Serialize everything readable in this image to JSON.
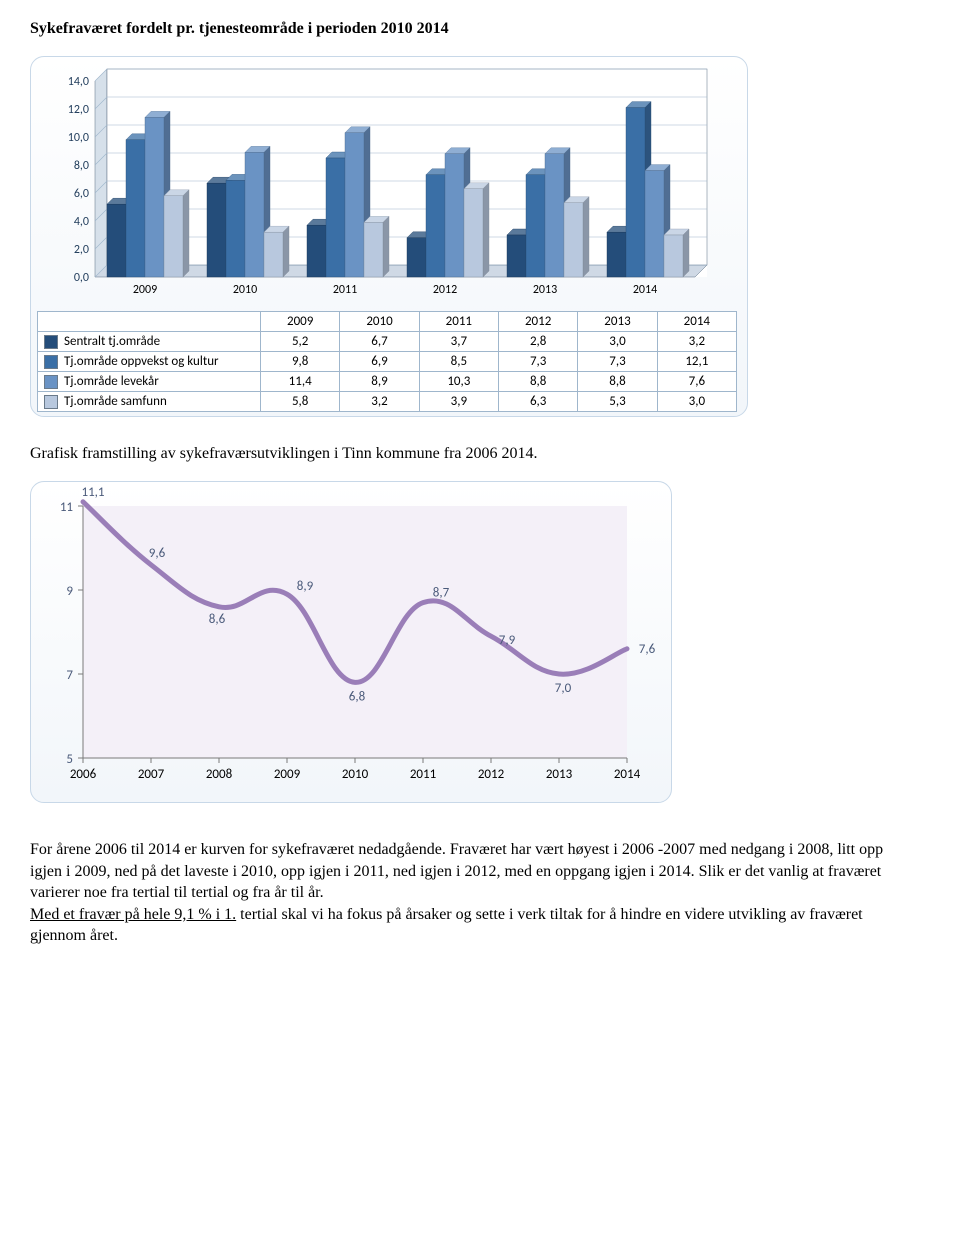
{
  "heading1": "Sykefraværet fordelt pr. tjenesteområde i perioden 2010 2014",
  "subtitle": "Grafisk framstilling av sykefraværsutviklingen i Tinn kommune fra 2006 2014.",
  "barChart": {
    "type": "bar",
    "years": [
      "2009",
      "2010",
      "2011",
      "2012",
      "2013",
      "2014"
    ],
    "yTicks": [
      "0,0",
      "2,0",
      "4,0",
      "6,0",
      "8,0",
      "10,0",
      "12,0",
      "14,0"
    ],
    "yMax": 14,
    "yTickStep": 2,
    "colors": {
      "sentralt": "#244d7a",
      "oppvekst": "#3a6fa6",
      "levekaar": "#6a93c4",
      "samfunn": "#b8c8de",
      "grid": "#9fb6cc",
      "axis": "#5a6e82",
      "text": "#1f3b5a",
      "depth": "#d6e0ea",
      "floor": "#cfd9e5"
    },
    "series": [
      {
        "key": "sentralt",
        "label": "Sentralt tj.område",
        "values": [
          5.2,
          6.7,
          3.7,
          2.8,
          3.0,
          3.2
        ],
        "display": [
          "5,2",
          "6,7",
          "3,7",
          "2,8",
          "3,0",
          "3,2"
        ]
      },
      {
        "key": "oppvekst",
        "label": "Tj.område oppvekst og kultur",
        "values": [
          9.8,
          6.9,
          8.5,
          7.3,
          7.3,
          12.1
        ],
        "display": [
          "9,8",
          "6,9",
          "8,5",
          "7,3",
          "7,3",
          "12,1"
        ]
      },
      {
        "key": "levekaar",
        "label": "Tj.område levekår",
        "values": [
          11.4,
          8.9,
          10.3,
          8.8,
          8.8,
          7.6
        ],
        "display": [
          "11,4",
          "8,9",
          "10,3",
          "8,8",
          "8,8",
          "7,6"
        ]
      },
      {
        "key": "samfunn",
        "label": "Tj.område samfunn",
        "values": [
          5.8,
          3.2,
          3.9,
          6.3,
          5.3,
          3.0
        ],
        "display": [
          "5,8",
          "3,2",
          "3,9",
          "6,3",
          "5,3",
          "3,0"
        ]
      }
    ]
  },
  "lineChart": {
    "type": "line",
    "years": [
      "2006",
      "2007",
      "2008",
      "2009",
      "2010",
      "2011",
      "2012",
      "2013",
      "2014"
    ],
    "values": [
      11.1,
      9.6,
      8.6,
      8.9,
      6.8,
      8.7,
      7.9,
      7.0,
      7.6
    ],
    "valueLabels": [
      "11,1",
      "9,6",
      "8,6",
      "8,9",
      "6,8",
      "8,7",
      "7,9",
      "7,0",
      "7,6"
    ],
    "yTicks": [
      "5",
      "7",
      "9",
      "11"
    ],
    "yMin": 5,
    "yMax": 11,
    "yTickVals": [
      5,
      7,
      9,
      11
    ],
    "colors": {
      "line": "#9a7eb8",
      "plotBg": "#f4f0f8",
      "axis": "#7a7a7a",
      "text": "#4a5a7a",
      "bg": "#ffffff"
    },
    "lineWidth": 5
  },
  "bodyText": "For årene 2006 til 2014 er kurven for sykefraværet nedadgående. Fraværet har vært høyest i 2006 -2007 med nedgang i 2008, litt opp igjen i 2009, ned på det laveste i 2010, opp igjen i 2011, ned igjen i 2012, med en oppgang igjen i 2014. Slik er det vanlig at fraværet varierer noe fra tertial til tertial og fra år til år.",
  "bodyText2a": "Med et fravær på hele 9,1 % i 1.",
  "bodyText2b": " tertial skal vi ha fokus på årsaker og sette i verk tiltak for å hindre en videre utvikling av fraværet gjennom året."
}
